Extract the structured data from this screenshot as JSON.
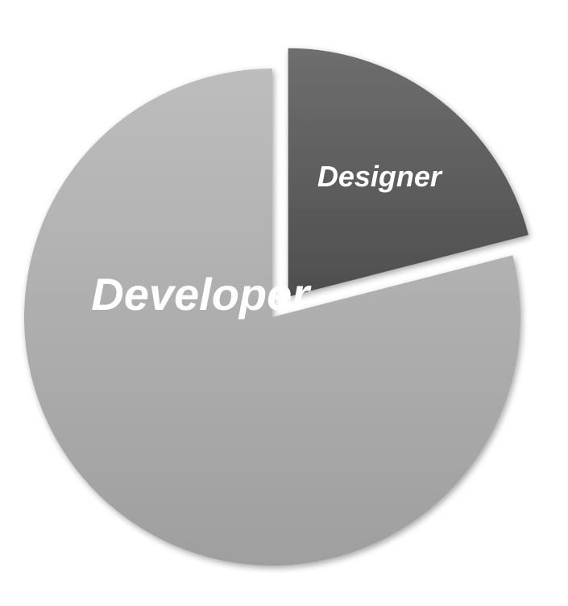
{
  "chart_data": {
    "type": "pie",
    "title": "",
    "slices": [
      {
        "label": "Designer",
        "value": 21,
        "color": "#5a5a5a",
        "exploded": true
      },
      {
        "label": "Developer",
        "value": 79,
        "color": "#ababab",
        "exploded": false
      }
    ],
    "start_angle_deg": 0,
    "direction": "clockwise",
    "legend": "none",
    "data_labels": "inside"
  }
}
